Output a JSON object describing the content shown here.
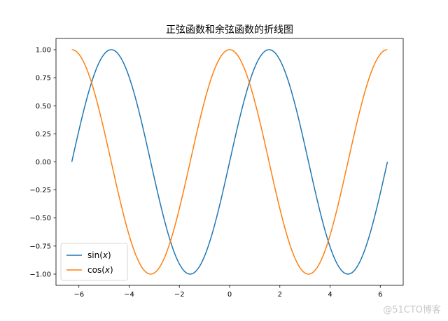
{
  "chart_data": {
    "type": "line",
    "title": "正弦函数和余弦函数的折线图",
    "xlabel": "",
    "ylabel": "",
    "xlim": [
      -6.911503837897545,
      6.911503837897545
    ],
    "ylim": [
      -1.1,
      1.1
    ],
    "x_ticks": [
      -6,
      -4,
      -2,
      0,
      2,
      4,
      6
    ],
    "x_tick_labels": [
      "−6",
      "−4",
      "−2",
      "0",
      "2",
      "4",
      "6"
    ],
    "y_ticks": [
      -1.0,
      -0.75,
      -0.5,
      -0.25,
      0.0,
      0.25,
      0.5,
      0.75,
      1.0
    ],
    "y_tick_labels": [
      "−1.00",
      "−0.75",
      "−0.50",
      "−0.25",
      "0.00",
      "0.25",
      "0.50",
      "0.75",
      "1.00"
    ],
    "grid": false,
    "legend_position": "lower-left",
    "x_domain": [
      -6.283185307179586,
      6.283185307179586
    ],
    "series": [
      {
        "name": "sin(x)",
        "name_prefix": "sin(",
        "name_var": "x",
        "name_suffix": ")",
        "function": "sin",
        "color": "#1f77b4"
      },
      {
        "name": "cos(x)",
        "name_prefix": "cos(",
        "name_var": "x",
        "name_suffix": ")",
        "function": "cos",
        "color": "#ff7f0e"
      }
    ]
  },
  "watermark": "@51CTO博客"
}
